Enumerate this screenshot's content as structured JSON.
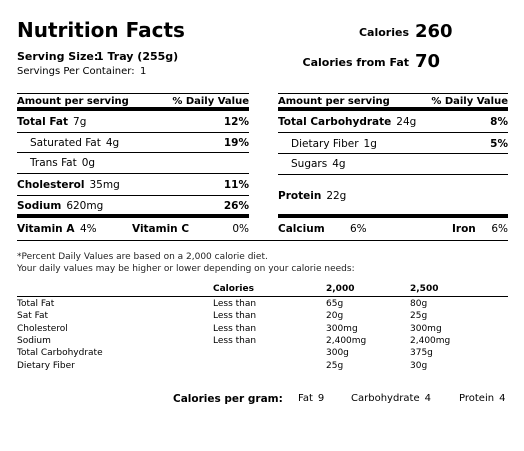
{
  "header": {
    "title": "Nutrition Facts",
    "serving_size_label": "Serving Size:",
    "serving_size": "1 Tray (255g)",
    "servings_label": "Servings Per Container:",
    "servings": 1,
    "calories_label": "Calories",
    "calories": 260,
    "calories_fat_label": "Calories from Fat",
    "calories_fat": 70
  },
  "left": {
    "header": [
      "Amount per serving",
      "% Daily Value"
    ],
    "rows": [
      {
        "name": "Total Fat",
        "amount": "7g",
        "dv": "12%"
      },
      {
        "name": "Saturated Fat",
        "amount": "4g",
        "dv": "19%"
      },
      {
        "name": "Trans Fat",
        "amount": "0g"
      },
      {
        "name": "Cholesterol",
        "amount": "35mg",
        "dv": "11%"
      },
      {
        "name": "Sodium",
        "amount": "620mg",
        "dv": "26%"
      }
    ]
  },
  "right": {
    "header": [
      "Amount per serving",
      "% Daily Value"
    ],
    "rows": [
      {
        "name": "Total Carbohydrate",
        "amount": "24g",
        "dv": "8%"
      },
      {
        "name": "Dietary Fiber",
        "amount": "1g",
        "dv": "5%"
      },
      {
        "name": "Sugars",
        "amount": "4g"
      },
      {
        "name": "Protein",
        "amount": "22g"
      }
    ]
  },
  "vitamins": [
    {
      "name": "Vitamin A",
      "value": "4%"
    },
    {
      "name": "Vitamin C",
      "value": "0%"
    },
    {
      "name": "Calcium",
      "value": "6%"
    },
    {
      "name": "Iron",
      "value": "6%"
    }
  ],
  "footnote": [
    "*Percent Daily Values are based on a 2,000 calorie diet.",
    "Your daily values may be higher or lower depending on your calorie needs:"
  ],
  "table": {
    "header": [
      "Calories",
      "2,000",
      "2,500"
    ],
    "rows": [
      {
        "name": "Total Fat",
        "limit": "Less than",
        "v1": "65g",
        "v2": "80g"
      },
      {
        "name": "Sat Fat",
        "limit": "Less than",
        "v1": "20g",
        "v2": "25g"
      },
      {
        "name": "Cholesterol",
        "limit": "Less than",
        "v1": "300mg",
        "v2": "300mg"
      },
      {
        "name": "Sodium",
        "limit": "Less than",
        "v1": "2,400mg",
        "v2": "2,400mg"
      },
      {
        "name": "Total Carbohydrate",
        "v1": "300g",
        "v2": "375g"
      },
      {
        "name": "Dietary Fiber",
        "v1": "25g",
        "v2": "30g"
      }
    ]
  },
  "per_gram": {
    "label": "Calories per gram:",
    "items": [
      {
        "name": "Fat",
        "value": 9
      },
      {
        "name": "Carbohydrate",
        "value": 4
      },
      {
        "name": "Protein",
        "value": 4
      }
    ]
  }
}
